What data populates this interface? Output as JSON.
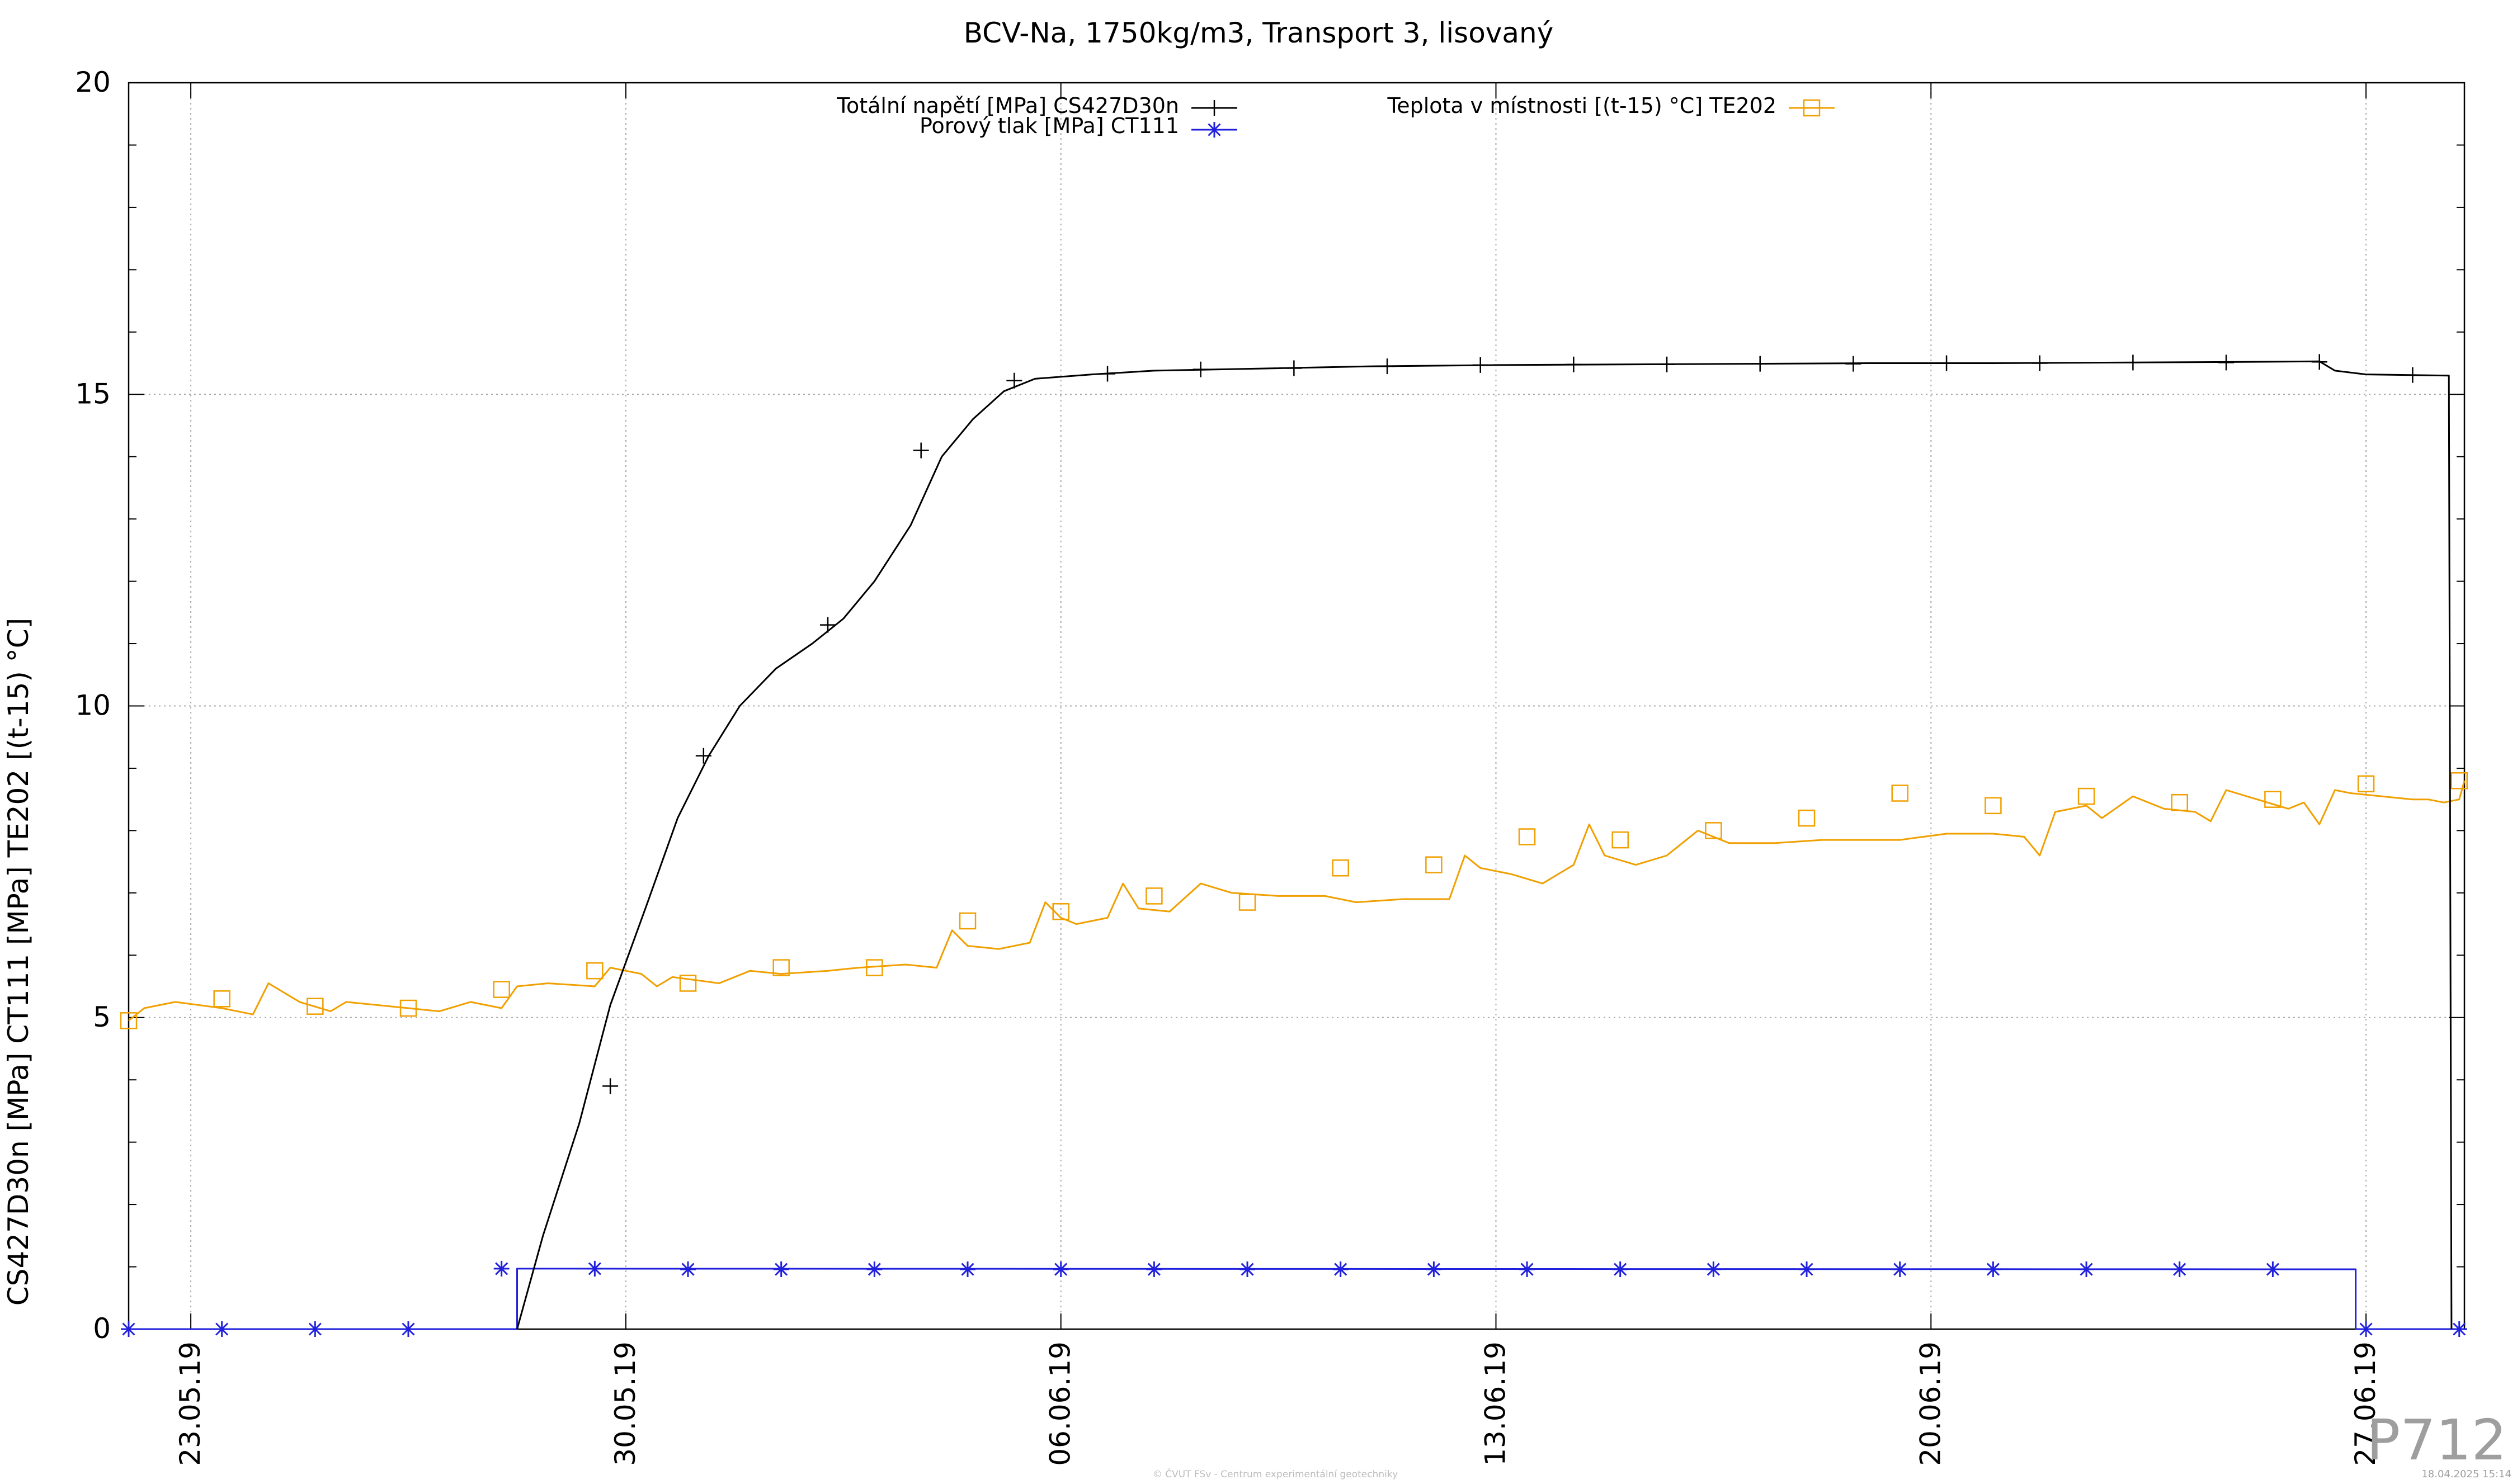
{
  "chart_data": {
    "type": "line",
    "title": "BCV-Na, 1750kg/m3, Transport 3, lisovaný",
    "ylabel": "CS427D30n [MPa] CT111 [MPa] TE202 [(t-15) °C]",
    "xlabel": "",
    "ylim": [
      0,
      20
    ],
    "xlim": [
      "2019-05-22T00:00",
      "2019-06-28T14:00"
    ],
    "grid": true,
    "legend_position": "top",
    "y_ticks": [
      0,
      5,
      10,
      15,
      20
    ],
    "y_minor_step": 1,
    "x_ticks": [
      {
        "date": "2019-05-23",
        "label": "23.05.19"
      },
      {
        "date": "2019-05-30",
        "label": "30.05.19"
      },
      {
        "date": "2019-06-06",
        "label": "06.06.19"
      },
      {
        "date": "2019-06-13",
        "label": "13.06.19"
      },
      {
        "date": "2019-06-20",
        "label": "20.06.19"
      },
      {
        "date": "2019-06-27",
        "label": "27.06.19"
      }
    ],
    "series": [
      {
        "name": "Totální napětí [MPa] CS427D30n",
        "color": "#000000",
        "marker": "plus",
        "points": [
          [
            "2019-05-28T06:00",
            0
          ],
          [
            "2019-05-28T16:00",
            1.5
          ],
          [
            "2019-05-29T06:00",
            3.3
          ],
          [
            "2019-05-29T18:00",
            5.2
          ],
          [
            "2019-05-30T08:00",
            6.8
          ],
          [
            "2019-05-30T20:00",
            8.2
          ],
          [
            "2019-05-31T08:00",
            9.2
          ],
          [
            "2019-05-31T20:00",
            10.0
          ],
          [
            "2019-06-01T10:00",
            10.6
          ],
          [
            "2019-06-02T00:00",
            11.0
          ],
          [
            "2019-06-02T12:00",
            11.4
          ],
          [
            "2019-06-03T00:00",
            12.0
          ],
          [
            "2019-06-03T14:00",
            12.9
          ],
          [
            "2019-06-04T02:00",
            14.0
          ],
          [
            "2019-06-04T14:00",
            14.6
          ],
          [
            "2019-06-05T02:00",
            15.05
          ],
          [
            "2019-06-05T14:00",
            15.25
          ],
          [
            "2019-06-06T12:00",
            15.32
          ],
          [
            "2019-06-07T12:00",
            15.38
          ],
          [
            "2019-06-09T00:00",
            15.41
          ],
          [
            "2019-06-11T00:00",
            15.45
          ],
          [
            "2019-06-13T00:00",
            15.47
          ],
          [
            "2019-06-15T00:00",
            15.48
          ],
          [
            "2019-06-17T00:00",
            15.49
          ],
          [
            "2019-06-19T00:00",
            15.5
          ],
          [
            "2019-06-21T00:00",
            15.5
          ],
          [
            "2019-06-23T00:00",
            15.51
          ],
          [
            "2019-06-25T00:00",
            15.52
          ],
          [
            "2019-06-26T06:00",
            15.53
          ],
          [
            "2019-06-26T12:00",
            15.38
          ],
          [
            "2019-06-27T00:00",
            15.32
          ],
          [
            "2019-06-28T08:00",
            15.3
          ],
          [
            "2019-06-28T09:00",
            0
          ]
        ],
        "marker_points": [
          [
            "2019-05-29T18:00",
            3.9
          ],
          [
            "2019-05-31T06:00",
            9.2
          ],
          [
            "2019-06-02T06:00",
            11.3
          ],
          [
            "2019-06-03T18:00",
            14.1
          ],
          [
            "2019-06-05T06:00",
            15.22
          ],
          [
            "2019-06-06T18:00",
            15.33
          ],
          [
            "2019-06-08T06:00",
            15.4
          ],
          [
            "2019-06-09T18:00",
            15.42
          ],
          [
            "2019-06-11T06:00",
            15.45
          ],
          [
            "2019-06-12T18:00",
            15.47
          ],
          [
            "2019-06-14T06:00",
            15.48
          ],
          [
            "2019-06-15T18:00",
            15.48
          ],
          [
            "2019-06-17T06:00",
            15.49
          ],
          [
            "2019-06-18T18:00",
            15.49
          ],
          [
            "2019-06-20T06:00",
            15.5
          ],
          [
            "2019-06-21T18:00",
            15.5
          ],
          [
            "2019-06-23T06:00",
            15.51
          ],
          [
            "2019-06-24T18:00",
            15.51
          ],
          [
            "2019-06-26T06:00",
            15.52
          ],
          [
            "2019-06-27T18:00",
            15.31
          ]
        ]
      },
      {
        "name": "Porový tlak [MPa] CT111",
        "color": "#2121dd",
        "marker": "star",
        "points": [
          [
            "2019-05-22T00:00",
            0
          ],
          [
            "2019-05-28T06:00",
            0
          ],
          [
            "2019-05-28T06:00",
            0.97
          ],
          [
            "2019-06-26T20:00",
            0.96
          ],
          [
            "2019-06-26T20:00",
            0
          ],
          [
            "2019-06-28T14:00",
            0
          ]
        ],
        "marker_points": [
          [
            "2019-05-22T00:00",
            0
          ],
          [
            "2019-05-23T12:00",
            0
          ],
          [
            "2019-05-25T00:00",
            0
          ],
          [
            "2019-05-26T12:00",
            0
          ],
          [
            "2019-05-28T00:00",
            0.97
          ],
          [
            "2019-05-29T12:00",
            0.97
          ],
          [
            "2019-05-31T00:00",
            0.96
          ],
          [
            "2019-06-01T12:00",
            0.96
          ],
          [
            "2019-06-03T00:00",
            0.96
          ],
          [
            "2019-06-04T12:00",
            0.96
          ],
          [
            "2019-06-06T00:00",
            0.96
          ],
          [
            "2019-06-07T12:00",
            0.96
          ],
          [
            "2019-06-09T00:00",
            0.96
          ],
          [
            "2019-06-10T12:00",
            0.96
          ],
          [
            "2019-06-12T00:00",
            0.96
          ],
          [
            "2019-06-13T12:00",
            0.96
          ],
          [
            "2019-06-15T00:00",
            0.96
          ],
          [
            "2019-06-16T12:00",
            0.96
          ],
          [
            "2019-06-18T00:00",
            0.96
          ],
          [
            "2019-06-19T12:00",
            0.96
          ],
          [
            "2019-06-21T00:00",
            0.96
          ],
          [
            "2019-06-22T12:00",
            0.96
          ],
          [
            "2019-06-24T00:00",
            0.96
          ],
          [
            "2019-06-25T12:00",
            0.96
          ],
          [
            "2019-06-27T00:00",
            0
          ],
          [
            "2019-06-28T12:00",
            0
          ]
        ]
      },
      {
        "name": "Teplota v místnosti [(t-15) °C] TE202",
        "color": "#f0a000",
        "marker": "square",
        "points": [
          [
            "2019-05-22T00:00",
            4.95
          ],
          [
            "2019-05-22T06:00",
            5.15
          ],
          [
            "2019-05-22T18:00",
            5.25
          ],
          [
            "2019-05-23T12:00",
            5.15
          ],
          [
            "2019-05-24T00:00",
            5.05
          ],
          [
            "2019-05-24T06:00",
            5.55
          ],
          [
            "2019-05-24T18:00",
            5.25
          ],
          [
            "2019-05-25T06:00",
            5.1
          ],
          [
            "2019-05-25T12:00",
            5.25
          ],
          [
            "2019-05-26T12:00",
            5.15
          ],
          [
            "2019-05-27T00:00",
            5.1
          ],
          [
            "2019-05-27T12:00",
            5.25
          ],
          [
            "2019-05-28T00:00",
            5.15
          ],
          [
            "2019-05-28T06:00",
            5.5
          ],
          [
            "2019-05-28T18:00",
            5.55
          ],
          [
            "2019-05-29T12:00",
            5.5
          ],
          [
            "2019-05-29T18:00",
            5.8
          ],
          [
            "2019-05-30T06:00",
            5.7
          ],
          [
            "2019-05-30T12:00",
            5.5
          ],
          [
            "2019-05-30T18:00",
            5.65
          ],
          [
            "2019-05-31T12:00",
            5.55
          ],
          [
            "2019-06-01T00:00",
            5.75
          ],
          [
            "2019-06-01T12:00",
            5.7
          ],
          [
            "2019-06-02T06:00",
            5.75
          ],
          [
            "2019-06-02T18:00",
            5.8
          ],
          [
            "2019-06-03T12:00",
            5.85
          ],
          [
            "2019-06-04T00:00",
            5.8
          ],
          [
            "2019-06-04T06:00",
            6.4
          ],
          [
            "2019-06-04T12:00",
            6.15
          ],
          [
            "2019-06-05T00:00",
            6.1
          ],
          [
            "2019-06-05T12:00",
            6.2
          ],
          [
            "2019-06-05T18:00",
            6.85
          ],
          [
            "2019-06-06T00:00",
            6.6
          ],
          [
            "2019-06-06T06:00",
            6.5
          ],
          [
            "2019-06-06T18:00",
            6.6
          ],
          [
            "2019-06-07T00:00",
            7.15
          ],
          [
            "2019-06-07T06:00",
            6.75
          ],
          [
            "2019-06-07T18:00",
            6.7
          ],
          [
            "2019-06-08T06:00",
            7.15
          ],
          [
            "2019-06-08T18:00",
            7.0
          ],
          [
            "2019-06-09T12:00",
            6.95
          ],
          [
            "2019-06-10T06:00",
            6.95
          ],
          [
            "2019-06-10T18:00",
            6.85
          ],
          [
            "2019-06-11T12:00",
            6.9
          ],
          [
            "2019-06-12T06:00",
            6.9
          ],
          [
            "2019-06-12T12:00",
            7.6
          ],
          [
            "2019-06-12T18:00",
            7.4
          ],
          [
            "2019-06-13T06:00",
            7.3
          ],
          [
            "2019-06-13T18:00",
            7.15
          ],
          [
            "2019-06-14T06:00",
            7.45
          ],
          [
            "2019-06-14T12:00",
            8.1
          ],
          [
            "2019-06-14T18:00",
            7.6
          ],
          [
            "2019-06-15T06:00",
            7.45
          ],
          [
            "2019-06-15T18:00",
            7.6
          ],
          [
            "2019-06-16T06:00",
            8.0
          ],
          [
            "2019-06-16T18:00",
            7.8
          ],
          [
            "2019-06-17T12:00",
            7.8
          ],
          [
            "2019-06-18T06:00",
            7.85
          ],
          [
            "2019-06-19T12:00",
            7.85
          ],
          [
            "2019-06-20T06:00",
            7.95
          ],
          [
            "2019-06-21T00:00",
            7.95
          ],
          [
            "2019-06-21T12:00",
            7.9
          ],
          [
            "2019-06-21T18:00",
            7.6
          ],
          [
            "2019-06-22T00:00",
            8.3
          ],
          [
            "2019-06-22T12:00",
            8.4
          ],
          [
            "2019-06-22T18:00",
            8.2
          ],
          [
            "2019-06-23T06:00",
            8.55
          ],
          [
            "2019-06-23T18:00",
            8.35
          ],
          [
            "2019-06-24T06:00",
            8.3
          ],
          [
            "2019-06-24T12:00",
            8.15
          ],
          [
            "2019-06-24T18:00",
            8.65
          ],
          [
            "2019-06-25T06:00",
            8.5
          ],
          [
            "2019-06-25T18:00",
            8.35
          ],
          [
            "2019-06-26T00:00",
            8.45
          ],
          [
            "2019-06-26T06:00",
            8.1
          ],
          [
            "2019-06-26T12:00",
            8.65
          ],
          [
            "2019-06-26T18:00",
            8.6
          ],
          [
            "2019-06-27T06:00",
            8.55
          ],
          [
            "2019-06-27T18:00",
            8.5
          ],
          [
            "2019-06-28T00:00",
            8.5
          ],
          [
            "2019-06-28T06:00",
            8.45
          ],
          [
            "2019-06-28T12:00",
            8.5
          ],
          [
            "2019-06-28T14:00",
            8.8
          ]
        ],
        "marker_points": [
          [
            "2019-05-22T00:00",
            4.95
          ],
          [
            "2019-05-23T12:00",
            5.3
          ],
          [
            "2019-05-25T00:00",
            5.18
          ],
          [
            "2019-05-26T12:00",
            5.15
          ],
          [
            "2019-05-28T00:00",
            5.45
          ],
          [
            "2019-05-29T12:00",
            5.75
          ],
          [
            "2019-05-31T00:00",
            5.55
          ],
          [
            "2019-06-01T12:00",
            5.8
          ],
          [
            "2019-06-03T00:00",
            5.8
          ],
          [
            "2019-06-04T12:00",
            6.55
          ],
          [
            "2019-06-06T00:00",
            6.7
          ],
          [
            "2019-06-07T12:00",
            6.95
          ],
          [
            "2019-06-09T00:00",
            6.85
          ],
          [
            "2019-06-10T12:00",
            7.4
          ],
          [
            "2019-06-12T00:00",
            7.45
          ],
          [
            "2019-06-13T12:00",
            7.9
          ],
          [
            "2019-06-15T00:00",
            7.85
          ],
          [
            "2019-06-16T12:00",
            8.0
          ],
          [
            "2019-06-18T00:00",
            8.2
          ],
          [
            "2019-06-19T12:00",
            8.6
          ],
          [
            "2019-06-21T00:00",
            8.4
          ],
          [
            "2019-06-22T12:00",
            8.55
          ],
          [
            "2019-06-24T00:00",
            8.45
          ],
          [
            "2019-06-25T12:00",
            8.5
          ],
          [
            "2019-06-27T00:00",
            8.75
          ],
          [
            "2019-06-28T12:00",
            8.8
          ]
        ]
      }
    ]
  },
  "watermark": {
    "code": "P712",
    "footer_center": "© ČVUT FSv - Centrum experimentální geotechniky",
    "footer_right": "18.04.2025 15:14"
  }
}
